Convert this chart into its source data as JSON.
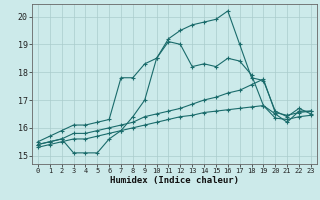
{
  "xlabel": "Humidex (Indice chaleur)",
  "bg_color": "#cceaea",
  "grid_color": "#aacccc",
  "line_color": "#1a6b6b",
  "xlim": [
    -0.5,
    23.5
  ],
  "ylim": [
    14.7,
    20.45
  ],
  "xticks": [
    0,
    1,
    2,
    3,
    4,
    5,
    6,
    7,
    8,
    9,
    10,
    11,
    12,
    13,
    14,
    15,
    16,
    17,
    18,
    19,
    20,
    21,
    22,
    23
  ],
  "yticks": [
    15,
    16,
    17,
    18,
    19,
    20
  ],
  "series": [
    {
      "x": [
        0,
        1,
        2,
        3,
        4,
        5,
        6,
        7,
        8,
        9,
        10,
        11,
        12,
        13,
        14,
        15,
        16,
        17,
        18,
        19,
        20,
        21,
        22,
        23
      ],
      "y": [
        15.5,
        15.7,
        15.9,
        16.1,
        16.1,
        16.2,
        16.3,
        17.8,
        17.8,
        18.3,
        18.5,
        19.2,
        19.5,
        19.7,
        19.8,
        19.9,
        20.2,
        19.0,
        17.8,
        17.7,
        16.6,
        16.4,
        16.7,
        16.5
      ]
    },
    {
      "x": [
        0,
        1,
        2,
        3,
        4,
        5,
        6,
        7,
        8,
        9,
        10,
        11,
        12,
        13,
        14,
        15,
        16,
        17,
        18,
        19,
        20,
        21,
        22,
        23
      ],
      "y": [
        15.4,
        15.5,
        15.6,
        15.1,
        15.1,
        15.1,
        15.6,
        15.9,
        16.4,
        17.0,
        18.5,
        19.1,
        19.0,
        18.2,
        18.3,
        18.2,
        18.5,
        18.4,
        17.9,
        16.8,
        16.5,
        16.2,
        16.6,
        16.6
      ]
    },
    {
      "x": [
        0,
        1,
        2,
        3,
        4,
        5,
        6,
        7,
        8,
        9,
        10,
        11,
        12,
        13,
        14,
        15,
        16,
        17,
        18,
        19,
        20,
        21,
        22,
        23
      ],
      "y": [
        15.4,
        15.5,
        15.6,
        15.8,
        15.8,
        15.9,
        16.0,
        16.1,
        16.2,
        16.4,
        16.5,
        16.6,
        16.7,
        16.85,
        17.0,
        17.1,
        17.25,
        17.35,
        17.55,
        17.75,
        16.55,
        16.45,
        16.55,
        16.6
      ]
    },
    {
      "x": [
        0,
        1,
        2,
        3,
        4,
        5,
        6,
        7,
        8,
        9,
        10,
        11,
        12,
        13,
        14,
        15,
        16,
        17,
        18,
        19,
        20,
        21,
        22,
        23
      ],
      "y": [
        15.3,
        15.4,
        15.5,
        15.6,
        15.6,
        15.7,
        15.8,
        15.9,
        16.0,
        16.1,
        16.2,
        16.3,
        16.4,
        16.45,
        16.55,
        16.6,
        16.65,
        16.7,
        16.75,
        16.8,
        16.35,
        16.3,
        16.4,
        16.45
      ]
    }
  ]
}
